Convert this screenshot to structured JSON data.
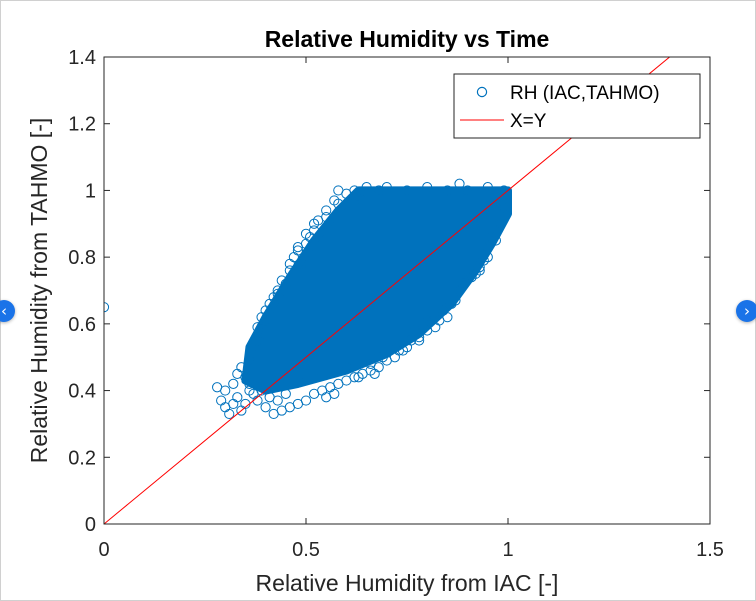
{
  "carousel": {
    "prev_icon": "chevron-left-icon",
    "next_icon": "chevron-right-icon",
    "prev_glyph": "‹",
    "next_glyph": "›",
    "accent_color": "#1a73e8"
  },
  "chart_data": {
    "type": "scatter",
    "title": "Relative Humidity vs Time",
    "xlabel": "Relative Humidity from IAC [-]",
    "ylabel": "Relative Humidity from TAHMO [-]",
    "xlim": [
      0,
      1.5
    ],
    "ylim": [
      0,
      1.4
    ],
    "xticks": [
      0,
      0.5,
      1,
      1.5
    ],
    "yticks": [
      0,
      0.2,
      0.4,
      0.6,
      0.8,
      1,
      1.2,
      1.4
    ],
    "xtick_labels": [
      "0",
      "0.5",
      "1",
      "1.5"
    ],
    "ytick_labels": [
      "0",
      "0.2",
      "0.4",
      "0.6",
      "0.8",
      "1",
      "1.2",
      "1.4"
    ],
    "grid": false,
    "legend": "top-right",
    "series": [
      {
        "name": "RH (IAC,TAHMO)",
        "kind": "scatter",
        "marker": "circle-open",
        "color": "#0072bd",
        "cloud_outline": [
          [
            0.35,
            0.43
          ],
          [
            0.36,
            0.53
          ],
          [
            0.4,
            0.62
          ],
          [
            0.46,
            0.74
          ],
          [
            0.52,
            0.85
          ],
          [
            0.58,
            0.94
          ],
          [
            0.63,
            1.0
          ],
          [
            1.0,
            1.0
          ],
          [
            1.0,
            0.93
          ],
          [
            0.96,
            0.84
          ],
          [
            0.92,
            0.76
          ],
          [
            0.86,
            0.66
          ],
          [
            0.78,
            0.57
          ],
          [
            0.7,
            0.51
          ],
          [
            0.6,
            0.46
          ],
          [
            0.48,
            0.42
          ],
          [
            0.4,
            0.4
          ]
        ],
        "points": [
          [
            0.0,
            0.65
          ],
          [
            0.28,
            0.41
          ],
          [
            0.29,
            0.37
          ],
          [
            0.3,
            0.4
          ],
          [
            0.31,
            0.33
          ],
          [
            0.32,
            0.36
          ],
          [
            0.33,
            0.38
          ],
          [
            0.34,
            0.34
          ],
          [
            0.3,
            0.35
          ],
          [
            0.32,
            0.42
          ],
          [
            0.33,
            0.45
          ],
          [
            0.34,
            0.47
          ],
          [
            0.35,
            0.36
          ],
          [
            0.36,
            0.49
          ],
          [
            0.37,
            0.53
          ],
          [
            0.38,
            0.55
          ],
          [
            0.38,
            0.59
          ],
          [
            0.39,
            0.62
          ],
          [
            0.4,
            0.64
          ],
          [
            0.41,
            0.66
          ],
          [
            0.42,
            0.68
          ],
          [
            0.43,
            0.7
          ],
          [
            0.45,
            0.72
          ],
          [
            0.46,
            0.76
          ],
          [
            0.47,
            0.8
          ],
          [
            0.48,
            0.82
          ],
          [
            0.49,
            0.78
          ],
          [
            0.5,
            0.84
          ],
          [
            0.51,
            0.86
          ],
          [
            0.52,
            0.88
          ],
          [
            0.53,
            0.91
          ],
          [
            0.55,
            0.94
          ],
          [
            0.57,
            0.97
          ],
          [
            0.58,
            1.0
          ],
          [
            0.6,
            0.99
          ],
          [
            0.62,
            1.0
          ],
          [
            0.65,
            1.01
          ],
          [
            0.68,
            1.0
          ],
          [
            0.7,
            1.01
          ],
          [
            0.75,
            1.0
          ],
          [
            0.8,
            1.01
          ],
          [
            0.85,
            1.0
          ],
          [
            0.88,
            1.02
          ],
          [
            0.9,
            1.0
          ],
          [
            0.95,
            1.01
          ],
          [
            0.99,
            1.0
          ],
          [
            0.99,
            0.95
          ],
          [
            0.98,
            0.9
          ],
          [
            0.96,
            0.86
          ],
          [
            0.95,
            0.83
          ],
          [
            0.94,
            0.79
          ],
          [
            0.93,
            0.77
          ],
          [
            0.92,
            0.75
          ],
          [
            0.95,
            0.8
          ],
          [
            0.97,
            0.85
          ],
          [
            0.9,
            0.74
          ],
          [
            0.88,
            0.7
          ],
          [
            0.86,
            0.66
          ],
          [
            0.84,
            0.64
          ],
          [
            0.83,
            0.61
          ],
          [
            0.8,
            0.58
          ],
          [
            0.78,
            0.56
          ],
          [
            0.76,
            0.55
          ],
          [
            0.74,
            0.52
          ],
          [
            0.72,
            0.5
          ],
          [
            0.7,
            0.49
          ],
          [
            0.68,
            0.47
          ],
          [
            0.66,
            0.46
          ],
          [
            0.64,
            0.45
          ],
          [
            0.62,
            0.44
          ],
          [
            0.6,
            0.43
          ],
          [
            0.58,
            0.42
          ],
          [
            0.56,
            0.41
          ],
          [
            0.54,
            0.4
          ],
          [
            0.52,
            0.39
          ],
          [
            0.5,
            0.37
          ],
          [
            0.48,
            0.36
          ],
          [
            0.46,
            0.35
          ],
          [
            0.44,
            0.34
          ],
          [
            0.42,
            0.33
          ],
          [
            0.4,
            0.35
          ],
          [
            0.38,
            0.37
          ],
          [
            0.55,
            0.38
          ],
          [
            0.57,
            0.39
          ],
          [
            0.63,
            0.44
          ],
          [
            0.66,
            0.48
          ],
          [
            0.67,
            0.45
          ],
          [
            0.69,
            0.5
          ],
          [
            0.73,
            0.52
          ],
          [
            0.75,
            0.53
          ],
          [
            0.78,
            0.55
          ],
          [
            0.82,
            0.59
          ],
          [
            0.85,
            0.62
          ],
          [
            0.87,
            0.67
          ],
          [
            0.89,
            0.72
          ],
          [
            0.91,
            0.74
          ],
          [
            0.93,
            0.76
          ],
          [
            0.8,
            0.61
          ],
          [
            0.77,
            0.58
          ],
          [
            0.6,
            0.47
          ],
          [
            0.45,
            0.39
          ],
          [
            0.43,
            0.37
          ],
          [
            0.41,
            0.38
          ],
          [
            0.39,
            0.4
          ],
          [
            0.36,
            0.42
          ],
          [
            0.35,
            0.44
          ],
          [
            0.36,
            0.4
          ],
          [
            0.37,
            0.39
          ],
          [
            0.4,
            0.61
          ],
          [
            0.39,
            0.57
          ],
          [
            0.43,
            0.69
          ],
          [
            0.44,
            0.73
          ],
          [
            0.46,
            0.78
          ],
          [
            0.48,
            0.83
          ],
          [
            0.52,
            0.9
          ],
          [
            0.55,
            0.92
          ],
          [
            0.58,
            0.96
          ],
          [
            0.62,
            0.98
          ],
          [
            0.64,
            0.97
          ],
          [
            0.5,
            0.87
          ]
        ]
      },
      {
        "name": "X=Y",
        "kind": "line",
        "color": "#ff0000",
        "x": [
          0,
          1.5
        ],
        "y": [
          0,
          1.5
        ]
      }
    ]
  }
}
